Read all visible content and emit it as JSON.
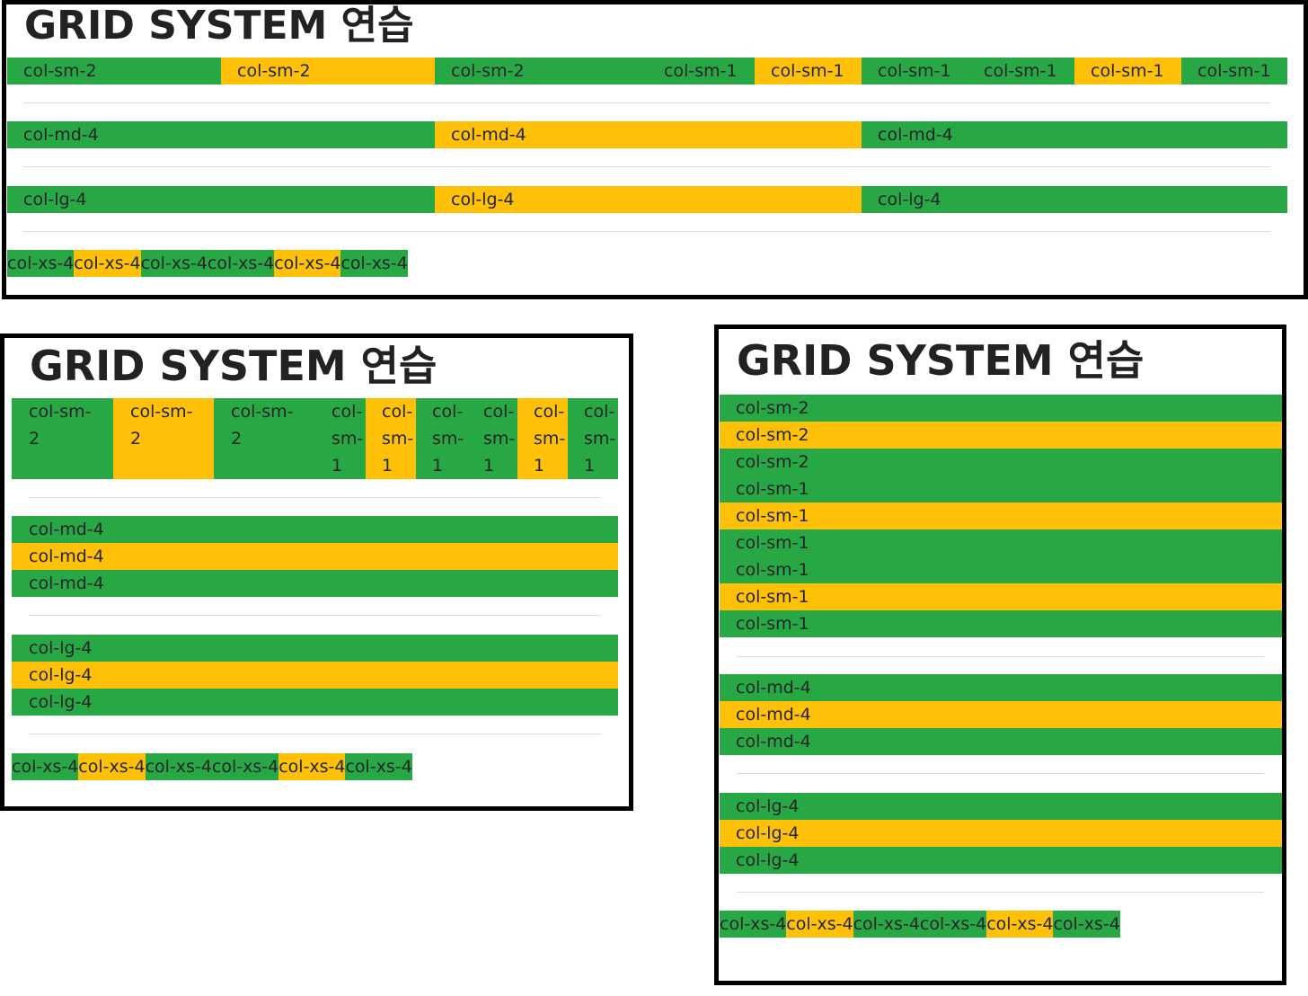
{
  "title": "GRID SYSTEM 연습",
  "rows": {
    "sm": [
      "col-sm-2",
      "col-sm-2",
      "col-sm-2",
      "col-sm-1",
      "col-sm-1",
      "col-sm-1",
      "col-sm-1",
      "col-sm-1",
      "col-sm-1"
    ],
    "md": [
      "col-md-4",
      "col-md-4",
      "col-md-4"
    ],
    "lg": [
      "col-lg-4",
      "col-lg-4",
      "col-lg-4"
    ],
    "xs": [
      "col-xs-4",
      "col-xs-4",
      "col-xs-4",
      "col-xs-4",
      "col-xs-4",
      "col-xs-4"
    ]
  },
  "wrapped": {
    "sm2": [
      "col-sm-",
      "2"
    ],
    "sm1": [
      "col-",
      "sm-",
      "1"
    ]
  },
  "colors": {
    "green": "#28a745",
    "yellow": "#ffc107",
    "border": "#000000"
  }
}
